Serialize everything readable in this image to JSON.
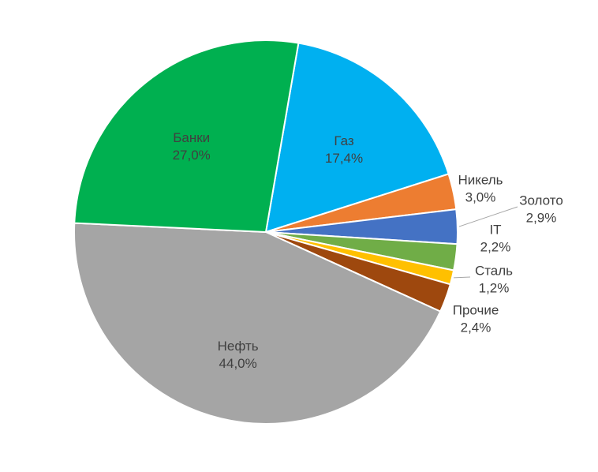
{
  "chart_data": {
    "type": "pie",
    "categories": [
      "Газ",
      "Никель",
      "Золото",
      "IT",
      "Сталь",
      "Прочие",
      "Нефть",
      "Банки"
    ],
    "values": [
      17.4,
      3.0,
      2.9,
      2.2,
      1.2,
      2.4,
      44.0,
      27.0
    ],
    "value_labels": [
      "17,4%",
      "3,0%",
      "2,9%",
      "2,2%",
      "1,2%",
      "2,4%",
      "44,0%",
      "27,0%"
    ],
    "colors": [
      "#00b0f0",
      "#ed7d31",
      "#4472c4",
      "#70ad47",
      "#ffc000",
      "#9e480e",
      "#a5a5a5",
      "#00b050"
    ]
  }
}
